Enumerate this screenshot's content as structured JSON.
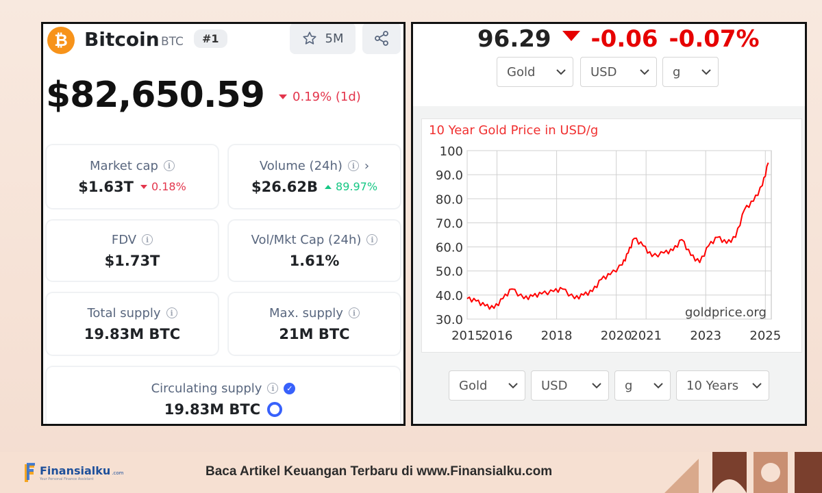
{
  "crypto": {
    "name": "Bitcoin",
    "symbol": "BTC",
    "logo_glyph": "₿",
    "rank": "#1",
    "watchlist_count": "5M",
    "icons": {
      "star": "star-icon",
      "share": "share-icon"
    },
    "price": "$82,650.59",
    "change": "0.19% (1d)",
    "stats": {
      "market_cap": {
        "label": "Market cap",
        "value": "$1.63T",
        "change": "0.18%"
      },
      "volume": {
        "label": "Volume (24h)",
        "value": "$26.62B",
        "change": "89.97%"
      },
      "fdv": {
        "label": "FDV",
        "value": "$1.73T"
      },
      "vol_mkt_cap": {
        "label": "Vol/Mkt Cap (24h)",
        "value": "1.61%"
      },
      "total_supply": {
        "label": "Total supply",
        "value": "19.83M BTC"
      },
      "max_supply": {
        "label": "Max. supply",
        "value": "21M BTC"
      },
      "circulating_supply": {
        "label": "Circulating supply",
        "value": "19.83M BTC"
      }
    },
    "colors": {
      "down": "#e3354c",
      "up": "#16c784",
      "brand": "#f7931a",
      "accent": "#3861fb"
    }
  },
  "gold": {
    "price": "96.29",
    "change": "-0.06",
    "change_pct": "-0.07%",
    "top_selects": {
      "metal": "Gold",
      "currency": "USD",
      "unit": "g"
    },
    "bottom_selects": {
      "metal": "Gold",
      "currency": "USD",
      "unit": "g",
      "period": "10 Years"
    },
    "colors": {
      "down": "#e60000",
      "line": "#ff0000"
    }
  },
  "chart_data": {
    "type": "line",
    "title": "10 Year Gold Price in USD/g",
    "watermark": "goldprice.org",
    "x_tick_labels": [
      "2015",
      "2016",
      "2018",
      "2020",
      "2021",
      "2023",
      "2025"
    ],
    "y_tick_labels": [
      "100",
      "90.0",
      "80.0",
      "70.0",
      "60.0",
      "50.0",
      "40.0",
      "30.0"
    ],
    "xlim": [
      2015.0,
      2025.2
    ],
    "ylim": [
      30,
      100
    ],
    "grid": true,
    "series": [
      {
        "x": [
          2015.0,
          2015.3,
          2015.6,
          2015.9,
          2016.2,
          2016.5,
          2016.9,
          2017.2,
          2017.5,
          2017.9,
          2018.2,
          2018.6,
          2018.9,
          2019.2,
          2019.5,
          2019.8,
          2020.2,
          2020.4,
          2020.6,
          2020.9,
          2021.2,
          2021.6,
          2021.9,
          2022.2,
          2022.5,
          2022.8,
          2023.1,
          2023.4,
          2023.7,
          2024.0,
          2024.3,
          2024.6,
          2024.9,
          2025.1
        ],
        "y": [
          38.5,
          37.5,
          35.5,
          34.5,
          38.5,
          42.5,
          38.5,
          39.5,
          40.5,
          41.5,
          42.5,
          38.5,
          40.0,
          41.5,
          46.5,
          48.5,
          52.5,
          57.5,
          63.5,
          60.5,
          56.0,
          57.5,
          58.5,
          63.0,
          56.5,
          53.5,
          60.5,
          64.0,
          61.5,
          64.0,
          75.5,
          79.0,
          85.5,
          95.0
        ]
      }
    ]
  },
  "footer": {
    "brand": "Finansialku",
    "brand_suffix": ".com",
    "tagline": "Your Personal Finance Assistant",
    "cta": "Baca Artikel Keuangan Terbaru di www.Finansialku.com"
  }
}
